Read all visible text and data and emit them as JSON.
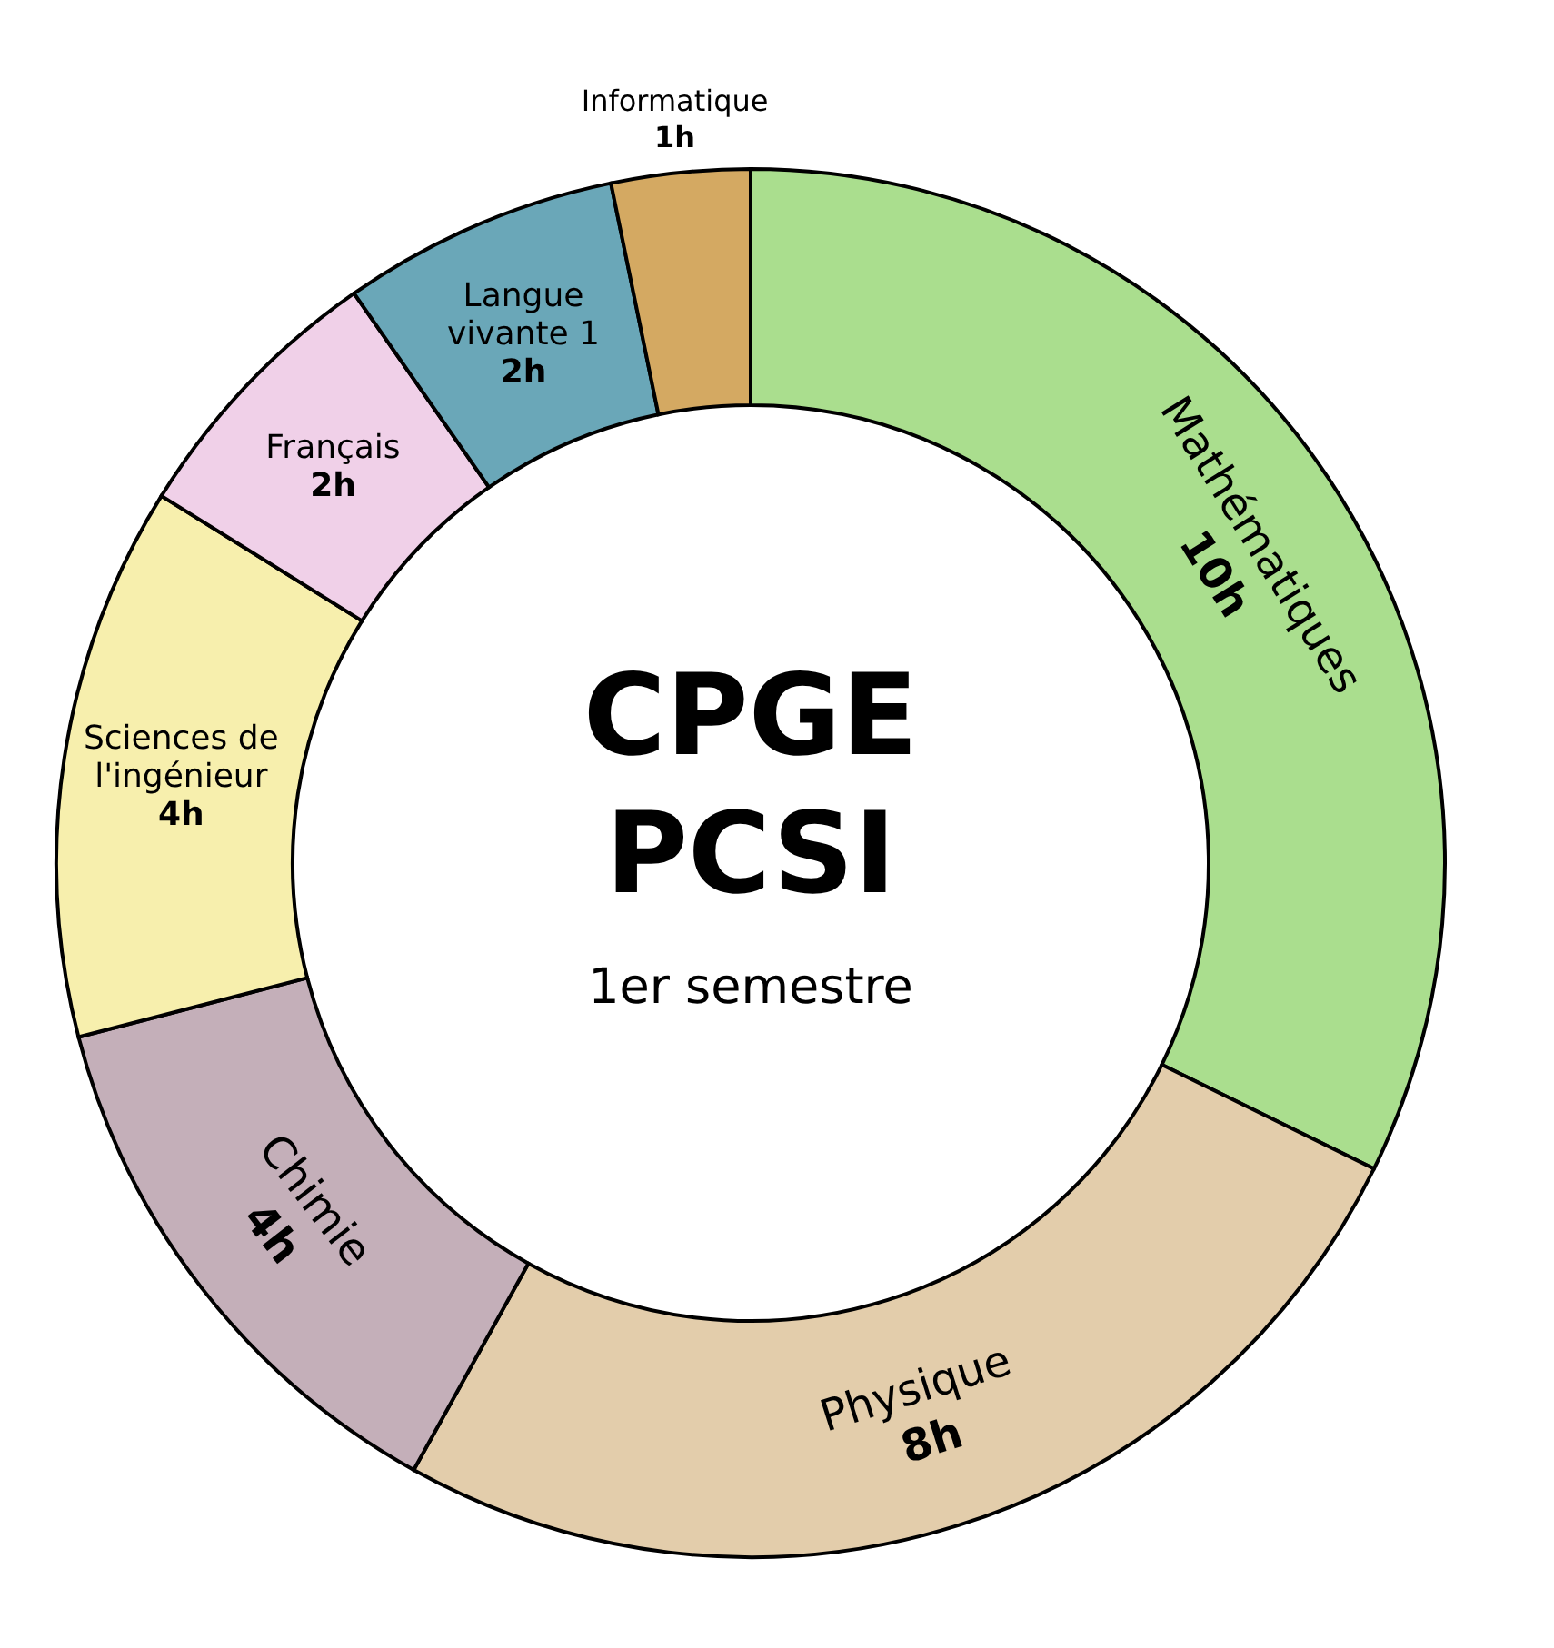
{
  "chart_data": {
    "type": "donut",
    "title": "CPGE PCSI",
    "subtitle": "1er semestre",
    "categories": [
      "Mathématiques",
      "Physique",
      "Chimie",
      "Sciences de l'ingénieur",
      "Français",
      "Langue vivante 1",
      "Informatique"
    ],
    "values": [
      10,
      8,
      4,
      4,
      2,
      2,
      1
    ],
    "value_labels": [
      "10h",
      "8h",
      "4h",
      "4h",
      "2h",
      "2h",
      "1h"
    ],
    "colors": [
      "#aade8e",
      "#e3cdab",
      "#c4afb9",
      "#f7efad",
      "#f0d0e8",
      "#6aa7b8",
      "#d4a962"
    ],
    "legend": false
  }
}
